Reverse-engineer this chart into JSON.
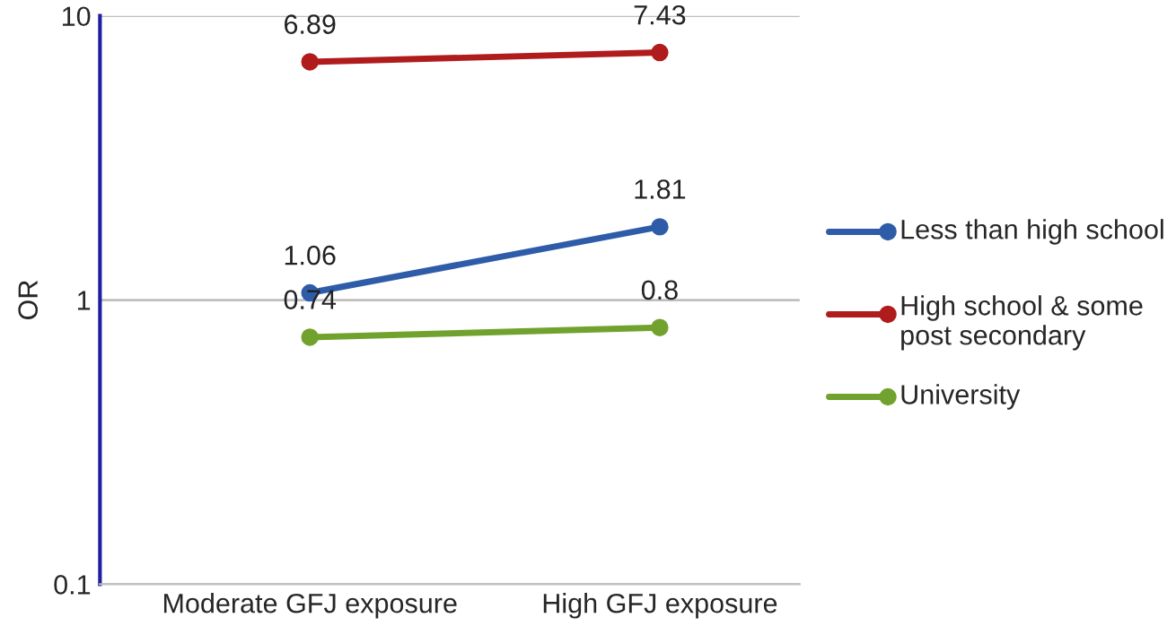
{
  "chart_data": {
    "type": "line",
    "ylabel": "OR",
    "categories": [
      "Moderate GFJ exposure",
      "High GFJ exposure"
    ],
    "series": [
      {
        "name": "Less than high school",
        "color": "#2e5ca8",
        "values": [
          1.06,
          1.81
        ]
      },
      {
        "name": "High school & some post secondary",
        "color": "#b01c1c",
        "values": [
          6.89,
          7.43
        ]
      },
      {
        "name": "University",
        "color": "#72a22e",
        "values": [
          0.74,
          0.8
        ]
      }
    ],
    "log": true,
    "ylim": [
      0.1,
      10
    ],
    "yticks": [
      0.1,
      1,
      10
    ],
    "grid": "y",
    "legend": "right",
    "marker": "circle",
    "line_style": "solid",
    "data_labels": true
  }
}
